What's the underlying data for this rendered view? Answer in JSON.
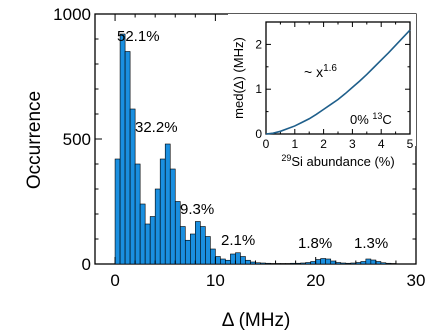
{
  "chart_data": [
    {
      "type": "bar",
      "title": "",
      "xlabel": "Δ (MHz)",
      "ylabel": "Occurrence",
      "xlim": [
        -2,
        30
      ],
      "ylim": [
        0,
        1000
      ],
      "x_ticks": [
        "0",
        "10",
        "20",
        "30"
      ],
      "y_ticks": [
        "0",
        "500",
        "1000"
      ],
      "bin_width": 0.5,
      "x": [
        0.0,
        0.5,
        1.0,
        1.5,
        2.0,
        2.5,
        3.0,
        3.5,
        4.0,
        4.5,
        5.0,
        5.5,
        6.0,
        6.5,
        7.0,
        7.5,
        8.0,
        8.5,
        9.0,
        9.5,
        10.0,
        10.5,
        11.0,
        11.5,
        12.0,
        12.5,
        13.0,
        13.5,
        14.0,
        14.5,
        15.0,
        15.5,
        16.0,
        16.5,
        17.0,
        17.5,
        18.0,
        18.5,
        19.0,
        19.5,
        20.0,
        20.5,
        21.0,
        21.5,
        22.0,
        22.5,
        23.0,
        23.5,
        24.0,
        24.5,
        25.0,
        25.5,
        26.0,
        26.5,
        27.0,
        27.5
      ],
      "values": [
        420,
        920,
        850,
        620,
        400,
        240,
        160,
        190,
        300,
        420,
        480,
        380,
        250,
        150,
        95,
        120,
        170,
        150,
        110,
        60,
        30,
        20,
        15,
        40,
        45,
        30,
        15,
        8,
        5,
        4,
        3,
        2,
        2,
        2,
        2,
        3,
        3,
        4,
        6,
        10,
        18,
        22,
        20,
        12,
        6,
        4,
        3,
        4,
        6,
        10,
        20,
        16,
        10,
        5,
        3,
        2
      ],
      "annotations": [
        "52.1%",
        "32.2%",
        "9.3%",
        "2.1%",
        "1.8%",
        "1.3%"
      ]
    },
    {
      "type": "line",
      "title": "",
      "xlabel": "29Si abundance (%)",
      "xlabel_sup": "29",
      "xlabel_main": "Si abundance (%)",
      "ylabel": "med(Δ) (MHz)",
      "xlim": [
        0,
        5
      ],
      "ylim": [
        0,
        2.5
      ],
      "x_ticks": [
        "0",
        "1",
        "2",
        "3",
        "4",
        "5"
      ],
      "y_ticks": [
        "0",
        "1",
        "2"
      ],
      "color": "#1f5f8b",
      "x": [
        0,
        0.25,
        0.5,
        0.75,
        1,
        1.25,
        1.5,
        1.75,
        2,
        2.25,
        2.5,
        2.75,
        3,
        3.25,
        3.5,
        3.75,
        4,
        4.25,
        4.5,
        4.75,
        5
      ],
      "y": [
        0,
        0.018,
        0.06,
        0.12,
        0.18,
        0.26,
        0.34,
        0.44,
        0.55,
        0.66,
        0.77,
        0.9,
        1.04,
        1.18,
        1.33,
        1.49,
        1.65,
        1.81,
        1.98,
        2.15,
        2.32
      ],
      "annotation_main": "~ x",
      "annotation_exp": "1.6",
      "note_prefix": "0% ",
      "note_sup": "13",
      "note_suffix": "C"
    }
  ]
}
